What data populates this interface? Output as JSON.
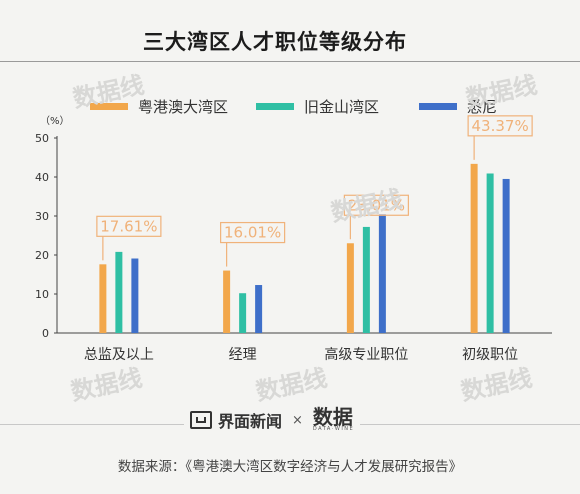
{
  "title": "三大湾区人才职位等级分布",
  "legend": [
    "粤港澳大湾区",
    "旧金山湾区",
    "悉尼"
  ],
  "unit_label": "（%）",
  "colors": {
    "series": [
      "#f2a74b",
      "#2fbfa4",
      "#3e6fc9"
    ],
    "callout": "#f0b27a",
    "axis": "#444444",
    "text": "#333333"
  },
  "chart_data": {
    "type": "bar",
    "categories": [
      "总监及以上",
      "经理",
      "高级专业职位",
      "初级职位"
    ],
    "series": [
      {
        "name": "粤港澳大湾区",
        "values": [
          17.61,
          16.01,
          23.01,
          43.37
        ]
      },
      {
        "name": "旧金山湾区",
        "values": [
          20.8,
          10.2,
          27.2,
          40.9
        ]
      },
      {
        "name": "悉尼",
        "values": [
          19.1,
          12.3,
          30.4,
          39.5
        ]
      }
    ],
    "ylim": [
      0,
      50
    ],
    "yticks": [
      0,
      10,
      20,
      30,
      40,
      50
    ],
    "data_labels": [
      "17.61%",
      "16.01%",
      "23.01%",
      "43.37%"
    ],
    "ylabel": "（%）",
    "xlabel": ""
  },
  "footer": {
    "brand": "界面新闻",
    "separator": "×",
    "partner": "数据",
    "partner_sub": "DATA·WINE",
    "source": "数据来源：《粤港澳大湾区数字经济与人才发展研究报告》"
  },
  "watermark": "数据线"
}
